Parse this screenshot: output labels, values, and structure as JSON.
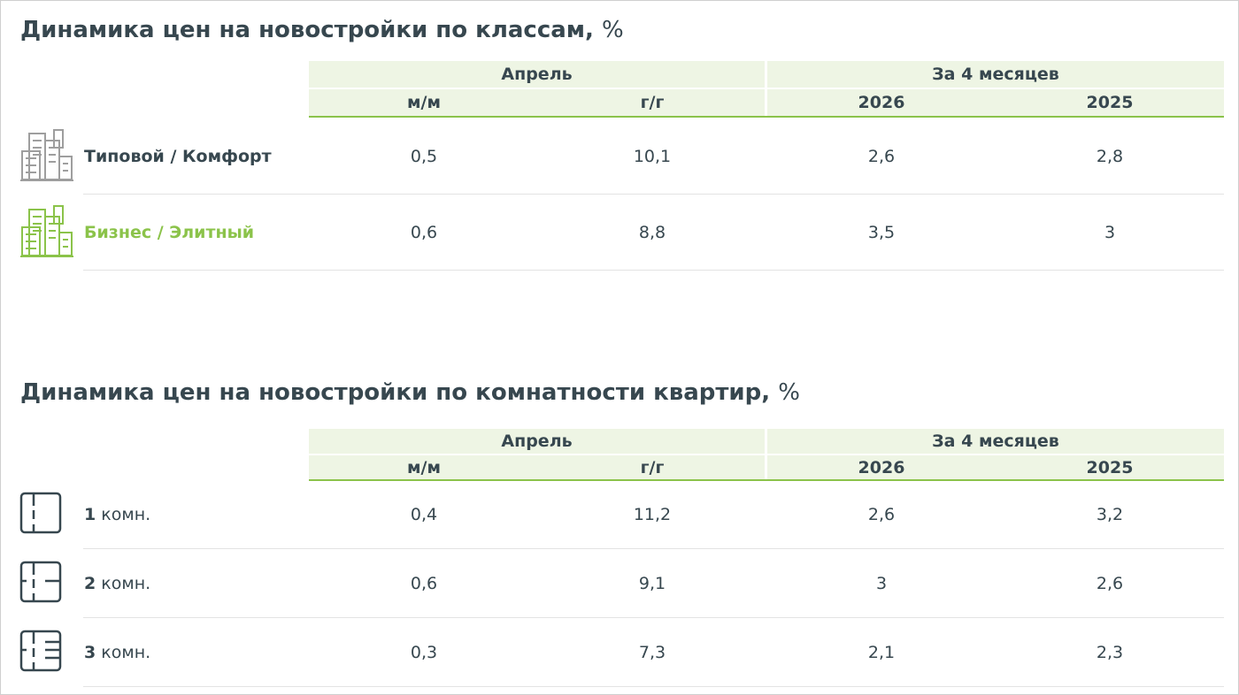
{
  "tables": [
    {
      "title": {
        "text": "Динамика цен на новостройки по классам,",
        "unit": "%"
      },
      "groups": [
        "Апрель",
        "За 4 месяцев"
      ],
      "columns": [
        "м/м",
        "г/г",
        "2026",
        "2025"
      ],
      "rows": [
        {
          "label": "Типовой / Комфорт",
          "values": [
            "0,5",
            "10,1",
            "2,6",
            "2,8"
          ]
        },
        {
          "label": "Бизнес / Элитный",
          "values": [
            "0,6",
            "8,8",
            "3,5",
            "3"
          ]
        }
      ]
    },
    {
      "title": {
        "text": "Динамика цен на новостройки по комнатности квартир,",
        "unit": "%"
      },
      "groups": [
        "Апрель",
        "За 4 месяцев"
      ],
      "columns": [
        "м/м",
        "г/г",
        "2026",
        "2025"
      ],
      "rows": [
        {
          "num": "1",
          "label": "комн.",
          "values": [
            "0,4",
            "11,2",
            "2,6",
            "3,2"
          ]
        },
        {
          "num": "2",
          "label": "комн.",
          "values": [
            "0,6",
            "9,1",
            "3",
            "2,6"
          ]
        },
        {
          "num": "3",
          "label": "комн.",
          "values": [
            "0,3",
            "7,3",
            "2,1",
            "2,3"
          ]
        }
      ]
    }
  ]
}
